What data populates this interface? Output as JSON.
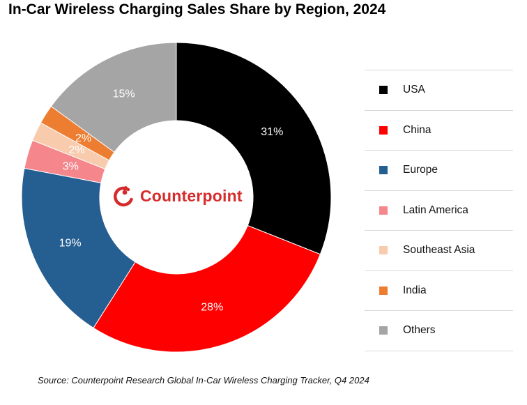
{
  "title": "In-Car Wireless Charging Sales Share by Region, 2024",
  "source": "Source: Counterpoint Research Global In-Car Wireless Charging Tracker, Q4 2024",
  "logo": {
    "text": "Counterpoint",
    "color": "#d52b2b"
  },
  "chart_data": {
    "type": "pie",
    "variant": "donut",
    "title": "In-Car Wireless Charging Sales Share by Region, 2024",
    "unit": "%",
    "legend_position": "right",
    "slices": [
      {
        "label": "USA",
        "value": 31,
        "display": "31%",
        "color": "#000000",
        "label_color": "#ffffff"
      },
      {
        "label": "China",
        "value": 28,
        "display": "28%",
        "color": "#ff0000",
        "label_color": "#ffffff"
      },
      {
        "label": "Europe",
        "value": 19,
        "display": "19%",
        "color": "#255e91",
        "label_color": "#ffffff"
      },
      {
        "label": "Latin America",
        "value": 3,
        "display": "3%",
        "color": "#f4868c",
        "label_color": "#ffffff"
      },
      {
        "label": "Southeast Asia",
        "value": 2,
        "display": "2%",
        "color": "#f8cbad",
        "label_color": "#ffffff"
      },
      {
        "label": "India",
        "value": 2,
        "display": "2%",
        "color": "#ed7d31",
        "label_color": "#ffffff"
      },
      {
        "label": "Others",
        "value": 15,
        "display": "15%",
        "color": "#a5a5a5",
        "label_color": "#ffffff"
      }
    ]
  }
}
